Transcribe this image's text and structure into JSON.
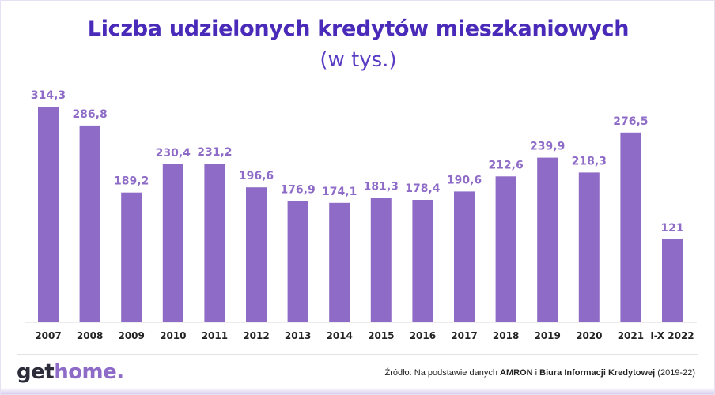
{
  "header": {
    "title": "Liczba udzielonych kredytów mieszkaniowych",
    "subtitle": "(w tys.)"
  },
  "colors": {
    "title": "#4a2ab8",
    "subtitle": "#5a3cc4",
    "bar": "#8e6bc7",
    "value_label": "#8e6bc7",
    "axis_label": "#222222",
    "logo_get": "#2b2b3a",
    "logo_home": "#8e6bc7"
  },
  "chart_data": {
    "type": "bar",
    "title": "Liczba udzielonych kredytów mieszkaniowych",
    "subtitle": "(w tys.)",
    "categories": [
      "2007",
      "2008",
      "2009",
      "2010",
      "2011",
      "2012",
      "2013",
      "2014",
      "2015",
      "2016",
      "2017",
      "2018",
      "2019",
      "2020",
      "2021",
      "I-X 2022"
    ],
    "values": [
      314.3,
      286.8,
      189.2,
      230.4,
      231.2,
      196.6,
      176.9,
      174.1,
      181.3,
      178.4,
      190.6,
      212.6,
      239.9,
      218.3,
      276.5,
      121
    ],
    "value_labels": [
      "314,3",
      "286,8",
      "189,2",
      "230,4",
      "231,2",
      "196,6",
      "176,9",
      "174,1",
      "181,3",
      "178,4",
      "190,6",
      "212,6",
      "239,9",
      "218,3",
      "276,5",
      "121"
    ],
    "xlabel": "",
    "ylabel": "",
    "ylim": [
      0,
      314.3
    ],
    "grid": false,
    "legend": "none"
  },
  "footer": {
    "logo_get": "get",
    "logo_home": "home.",
    "source_prefix": "Źródło: Na podstawie danych ",
    "source_amron": "AMRON",
    "source_mid": " i ",
    "source_bik": "Biura Informacji Kredytowej",
    "source_suffix": " (2019-22)"
  }
}
